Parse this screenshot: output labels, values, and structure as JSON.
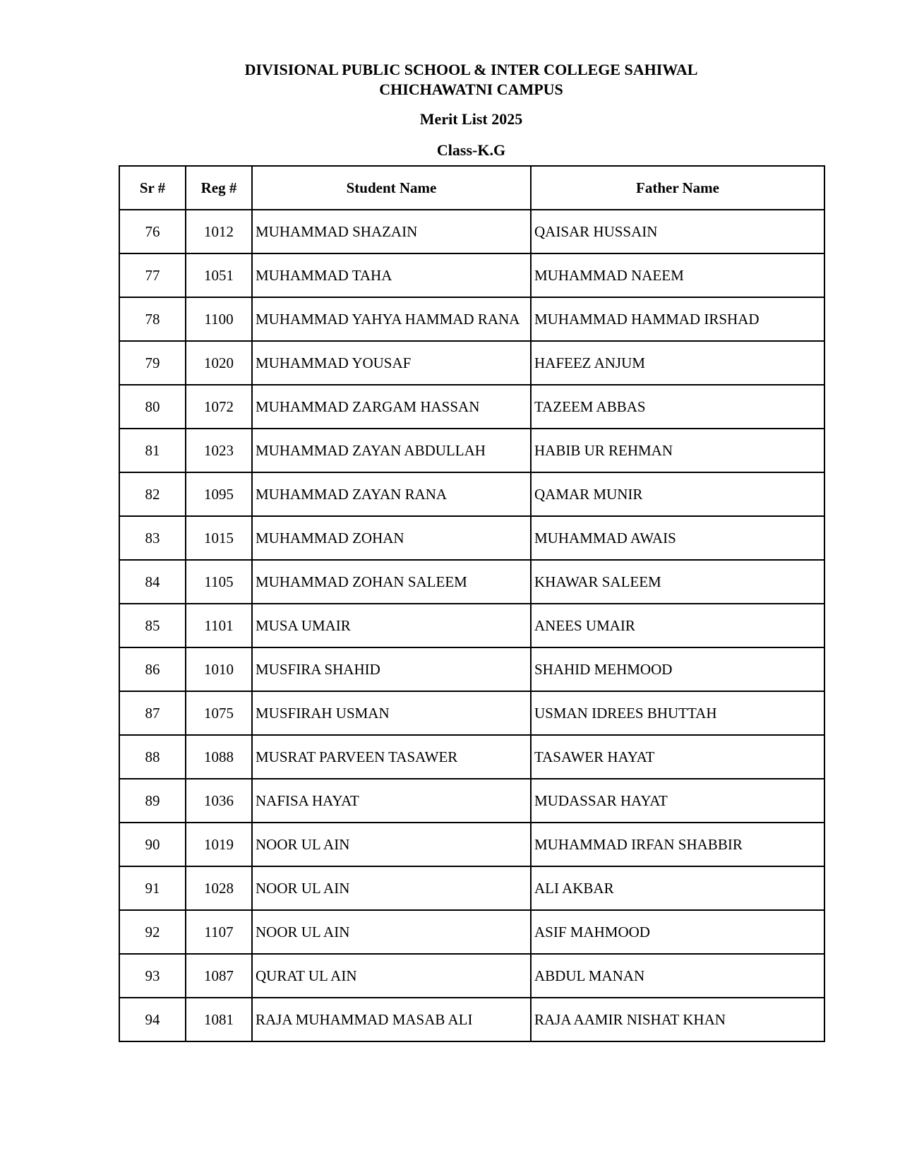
{
  "header": {
    "school": "DIVISIONAL PUBLIC SCHOOL & INTER COLLEGE SAHIWAL",
    "campus": "CHICHAWATNI CAMPUS",
    "list_title": "Merit List 2025",
    "class": "Class-K.G"
  },
  "table": {
    "columns": [
      "Sr #",
      "Reg #",
      "Student Name",
      "Father Name"
    ],
    "rows": [
      [
        "76",
        "1012",
        "MUHAMMAD SHAZAIN",
        "QAISAR HUSSAIN"
      ],
      [
        "77",
        "1051",
        "MUHAMMAD TAHA",
        "MUHAMMAD NAEEM"
      ],
      [
        "78",
        "1100",
        "MUHAMMAD YAHYA HAMMAD RANA",
        "MUHAMMAD HAMMAD IRSHAD"
      ],
      [
        "79",
        "1020",
        "MUHAMMAD YOUSAF",
        "HAFEEZ ANJUM"
      ],
      [
        "80",
        "1072",
        "MUHAMMAD ZARGAM HASSAN",
        "TAZEEM ABBAS"
      ],
      [
        "81",
        "1023",
        "MUHAMMAD ZAYAN ABDULLAH",
        "HABIB UR REHMAN"
      ],
      [
        "82",
        "1095",
        "MUHAMMAD ZAYAN RANA",
        "QAMAR MUNIR"
      ],
      [
        "83",
        "1015",
        "MUHAMMAD ZOHAN",
        "MUHAMMAD AWAIS"
      ],
      [
        "84",
        "1105",
        "MUHAMMAD ZOHAN SALEEM",
        "KHAWAR SALEEM"
      ],
      [
        "85",
        "1101",
        "MUSA UMAIR",
        "ANEES UMAIR"
      ],
      [
        "86",
        "1010",
        "MUSFIRA SHAHID",
        "SHAHID MEHMOOD"
      ],
      [
        "87",
        "1075",
        "MUSFIRAH USMAN",
        "USMAN IDREES BHUTTAH"
      ],
      [
        "88",
        "1088",
        "MUSRAT PARVEEN TASAWER",
        "TASAWER HAYAT"
      ],
      [
        "89",
        "1036",
        "NAFISA HAYAT",
        "MUDASSAR HAYAT"
      ],
      [
        "90",
        "1019",
        "NOOR UL AIN",
        "MUHAMMAD IRFAN SHABBIR"
      ],
      [
        "91",
        "1028",
        "NOOR UL AIN",
        "ALI AKBAR"
      ],
      [
        "92",
        "1107",
        "NOOR UL AIN",
        "ASIF MAHMOOD"
      ],
      [
        "93",
        "1087",
        "QURAT UL AIN",
        "ABDUL MANAN"
      ],
      [
        "94",
        "1081",
        "RAJA MUHAMMAD MASAB ALI",
        "RAJA AAMIR NISHAT KHAN"
      ]
    ]
  }
}
